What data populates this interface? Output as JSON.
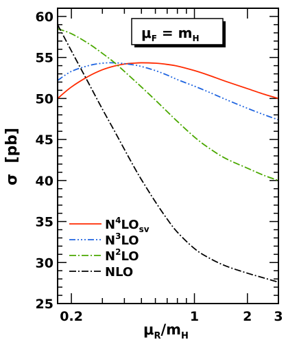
{
  "chart_data": {
    "type": "line",
    "xscale": "log",
    "xlim": [
      0.167,
      3
    ],
    "ylim": [
      25,
      61
    ],
    "xticks_major": [
      {
        "value": 0.2,
        "label": "0.2"
      },
      {
        "value": 1,
        "label": "1"
      },
      {
        "value": 2,
        "label": "2"
      },
      {
        "value": 3,
        "label": "3"
      }
    ],
    "yticks_major": [
      {
        "value": 25,
        "label": "25"
      },
      {
        "value": 30,
        "label": "30"
      },
      {
        "value": 35,
        "label": "35"
      },
      {
        "value": 40,
        "label": "40"
      },
      {
        "value": 45,
        "label": "45"
      },
      {
        "value": 50,
        "label": "50"
      },
      {
        "value": 55,
        "label": "55"
      },
      {
        "value": 60,
        "label": "60"
      }
    ],
    "xlabel": {
      "main": "μ",
      "sub1": "R",
      "mid": "/m",
      "sub2": "H"
    },
    "ylabel": "σ  [pb]",
    "annotation": {
      "main": "μ",
      "sub1": "F",
      "mid": " = m",
      "sub2": "H"
    },
    "legend_position": "bottom-left",
    "series": [
      {
        "name": "N4LOsv",
        "label": {
          "a": "N",
          "sup": "4",
          "b": "LO",
          "sub": "sv"
        },
        "color": "#ff2a00",
        "dash": "",
        "x": [
          0.167,
          0.2,
          0.25,
          0.3,
          0.35,
          0.4,
          0.45,
          0.5,
          0.6,
          0.7,
          0.8,
          1.0,
          1.2,
          1.5,
          2.0,
          2.5,
          3.0
        ],
        "y": [
          50.0,
          51.4,
          52.7,
          53.5,
          53.95,
          54.2,
          54.3,
          54.35,
          54.3,
          54.15,
          53.95,
          53.4,
          52.85,
          52.1,
          51.2,
          50.5,
          50.0
        ]
      },
      {
        "name": "N3LO",
        "label": {
          "a": "N",
          "sup": "3",
          "b": "LO",
          "sub": ""
        },
        "color": "#1e64e0",
        "dash": "9 3 2 3 2 3 2 3",
        "x": [
          0.167,
          0.2,
          0.25,
          0.3,
          0.35,
          0.4,
          0.45,
          0.5,
          0.6,
          0.7,
          0.8,
          1.0,
          1.2,
          1.5,
          2.0,
          2.5,
          3.0
        ],
        "y": [
          52.2,
          53.3,
          54.0,
          54.3,
          54.35,
          54.25,
          54.1,
          53.9,
          53.4,
          52.85,
          52.3,
          51.5,
          50.8,
          49.9,
          48.8,
          48.0,
          47.4
        ]
      },
      {
        "name": "N2LO",
        "label": {
          "a": "N",
          "sup": "2",
          "b": "LO",
          "sub": ""
        },
        "color": "#4aa800",
        "dash": "10 3 2 3",
        "x": [
          0.167,
          0.2,
          0.25,
          0.3,
          0.35,
          0.4,
          0.45,
          0.5,
          0.6,
          0.7,
          0.8,
          1.0,
          1.2,
          1.5,
          2.0,
          2.5,
          3.0
        ],
        "y": [
          58.5,
          57.9,
          56.7,
          55.5,
          54.4,
          53.3,
          52.3,
          51.4,
          49.8,
          48.4,
          47.2,
          45.3,
          44.0,
          42.7,
          41.5,
          40.6,
          40.0
        ]
      },
      {
        "name": "NLO",
        "label": {
          "a": "NLO",
          "sup": "",
          "b": "",
          "sub": ""
        },
        "color": "#000000",
        "dash": "10 3 2 3",
        "x": [
          0.167,
          0.2,
          0.25,
          0.3,
          0.35,
          0.4,
          0.45,
          0.5,
          0.6,
          0.7,
          0.8,
          1.0,
          1.2,
          1.5,
          2.0,
          2.5,
          3.0
        ],
        "y": [
          59.0,
          55.8,
          51.9,
          48.7,
          46.1,
          43.8,
          41.8,
          40.1,
          37.4,
          35.3,
          33.7,
          31.7,
          30.6,
          29.6,
          28.7,
          28.1,
          27.6
        ]
      }
    ]
  }
}
